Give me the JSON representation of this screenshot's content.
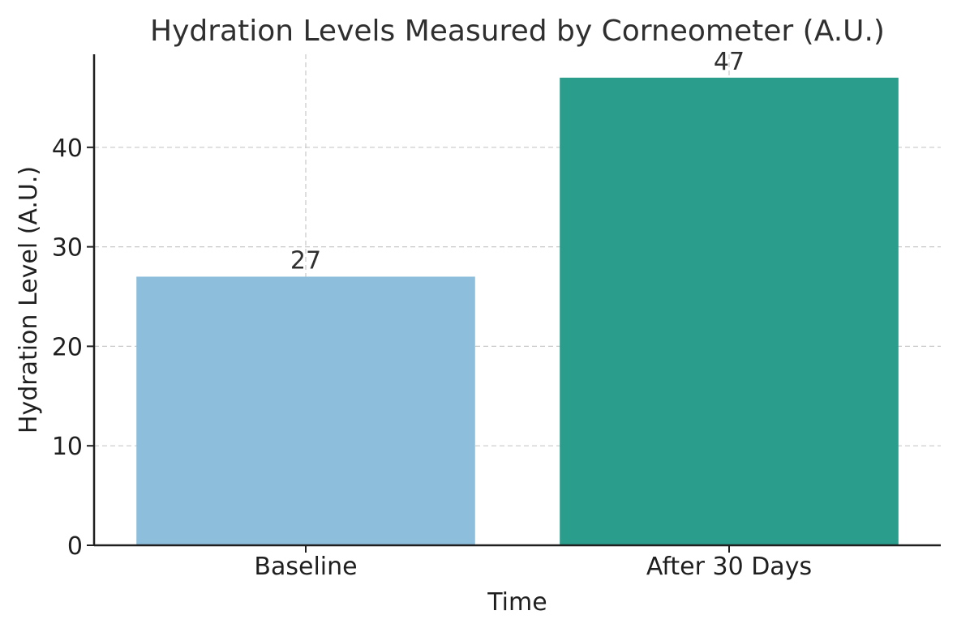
{
  "chart_data": {
    "type": "bar",
    "title": "Hydration Levels Measured by Corneometer (A.U.)",
    "xlabel": "Time",
    "ylabel": "Hydration Level (A.U.)",
    "categories": [
      "Baseline",
      "After 30 Days"
    ],
    "values": [
      27,
      47
    ],
    "colors": [
      "#8dbfdd",
      "#2a9d8c"
    ],
    "ylim": [
      0,
      49.35
    ],
    "yticks": [
      0,
      10,
      20,
      30,
      40
    ],
    "grid": true,
    "legend": "none"
  }
}
